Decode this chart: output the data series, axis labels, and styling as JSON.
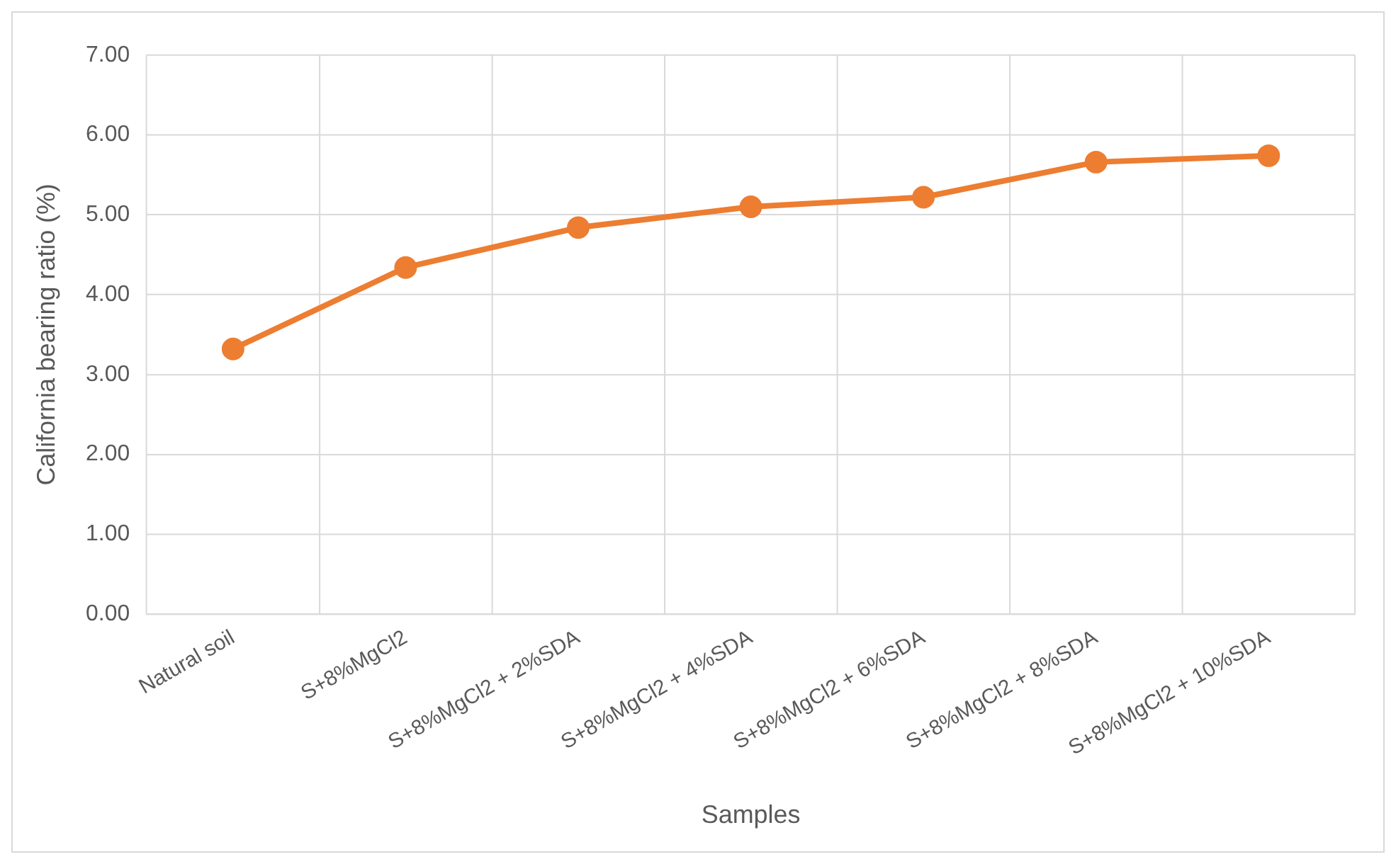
{
  "chart_data": {
    "type": "line",
    "xlabel": "Samples",
    "ylabel": "California bearing ratio (%)",
    "categories": [
      "Natural soil",
      "S+8%MgCl2",
      "S+8%MgCl2 + 2%SDA",
      "S+8%MgCl2 + 4%SDA",
      "S+8%MgCl2 + 6%SDA",
      "S+8%MgCl2 + 8%SDA",
      "S+8%MgCl2 + 10%SDA"
    ],
    "series": [
      {
        "color": "#ed7d31",
        "values": [
          3.32,
          4.34,
          4.84,
          5.1,
          5.22,
          5.66,
          5.74
        ]
      }
    ],
    "ylim": [
      0,
      7
    ],
    "yticks": [
      {
        "value": 0,
        "label": "0.00"
      },
      {
        "value": 1,
        "label": "1.00"
      },
      {
        "value": 2,
        "label": "2.00"
      },
      {
        "value": 3,
        "label": "3.00"
      },
      {
        "value": 4,
        "label": "4.00"
      },
      {
        "value": 5,
        "label": "5.00"
      },
      {
        "value": 6,
        "label": "6.00"
      },
      {
        "value": 7,
        "label": "7.00"
      }
    ],
    "grid": true,
    "marker": "circle",
    "legend": false
  }
}
